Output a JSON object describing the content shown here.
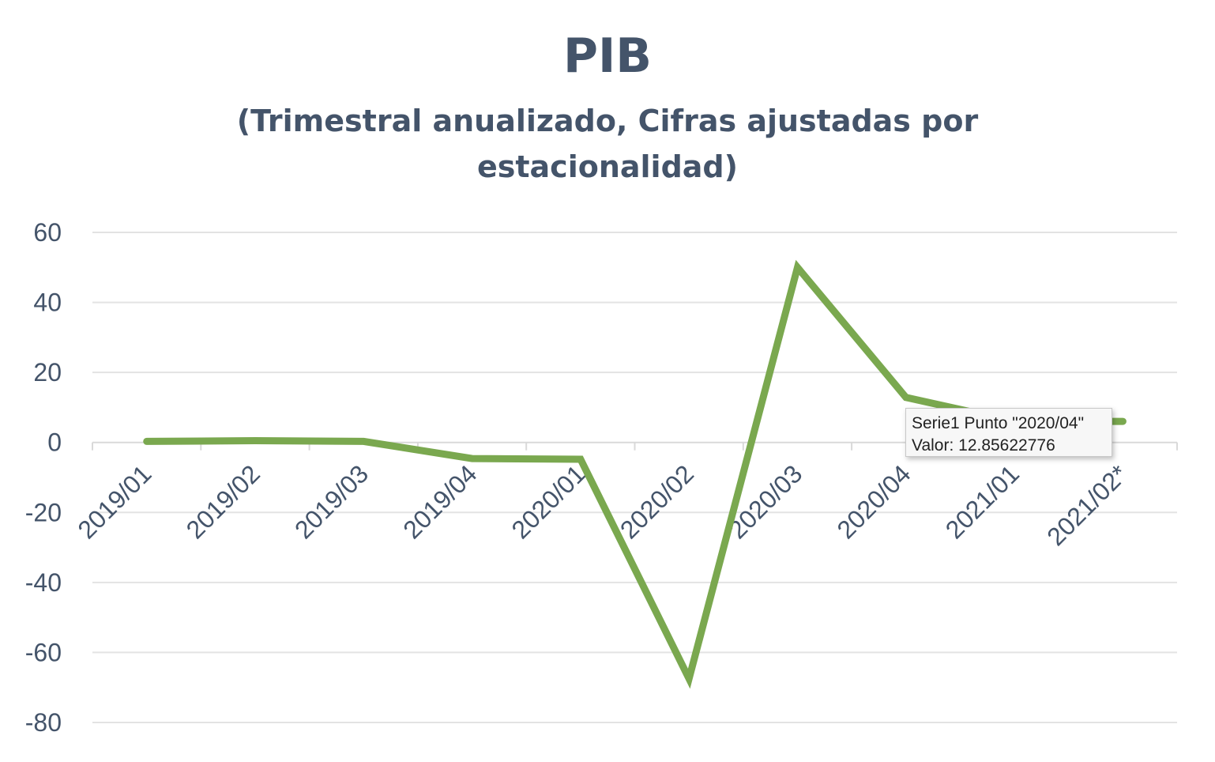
{
  "chart_data": {
    "type": "line",
    "title": "PIB",
    "subtitle": "(Trimestral anualizado, Cifras ajustadas por estacionalidad)",
    "categories": [
      "2019/01",
      "2019/02",
      "2019/03",
      "2019/04",
      "2020/01",
      "2020/02",
      "2020/03",
      "2020/04",
      "2021/01",
      "2021/02*"
    ],
    "series": [
      {
        "name": "Serie1",
        "color": "#7aa84f",
        "values": [
          0.3,
          0.5,
          0.3,
          -4.6,
          -4.8,
          -67.5,
          50.0,
          12.85622776,
          6.0,
          6.0
        ]
      }
    ],
    "yticks": [
      60,
      40,
      20,
      0,
      -20,
      -40,
      -60,
      -80
    ],
    "ylim": [
      -80,
      60
    ],
    "grid": true,
    "legend": "none"
  },
  "tooltip": {
    "line1": "Serie1 Punto \"2020/04\"",
    "line2": "Valor: 12.85622776"
  },
  "colors": {
    "text": "#44546a",
    "grid": "#e3e3e3",
    "axis": "#d9d9d9"
  }
}
